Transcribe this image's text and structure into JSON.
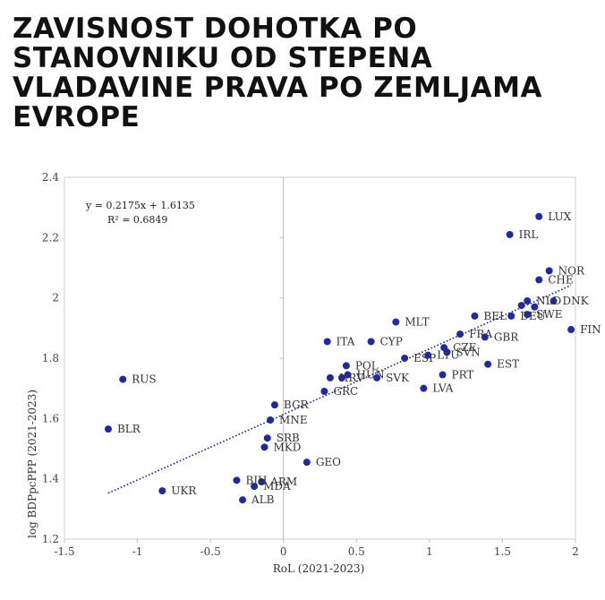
{
  "title": "ZAVISNOST DOHOTKA PO STANOVNIKU OD STEPENA VLADAVINE PRAVA PO ZEMLJAMA EVROPE",
  "chart_data": {
    "type": "scatter",
    "xlabel": "RoL (2021-2023)",
    "ylabel": "log BDPpcPPP (2021-2023)",
    "xlim": [
      -1.5,
      2
    ],
    "ylim": [
      1.2,
      2.4
    ],
    "xticks": [
      "-1.5",
      "-1",
      "-0.5",
      "0",
      "0.5",
      "1",
      "1.5",
      "2"
    ],
    "yticks": [
      "1.2",
      "1.4",
      "1.6",
      "1.8",
      "2",
      "2.2",
      "2.4"
    ],
    "trend": {
      "equation": "y = 0.2175x + 1.6135",
      "r2": "R² = 0.6849",
      "slope": 0.2175,
      "intercept": 1.6135,
      "x_range": [
        -1.2,
        1.97
      ]
    },
    "color": "#1f2a9e",
    "points": [
      {
        "label": "LUX",
        "x": 1.75,
        "y": 2.27
      },
      {
        "label": "IRL",
        "x": 1.55,
        "y": 2.21
      },
      {
        "label": "NOR",
        "x": 1.82,
        "y": 2.09
      },
      {
        "label": "CHE",
        "x": 1.75,
        "y": 2.06
      },
      {
        "label": "NLD",
        "x": 1.67,
        "y": 1.99
      },
      {
        "label": "",
        "x": 1.72,
        "y": 1.97
      },
      {
        "label": "DNK",
        "x": 1.85,
        "y": 1.99
      },
      {
        "label": "",
        "x": 1.63,
        "y": 1.975
      },
      {
        "label": "BEL",
        "x": 1.31,
        "y": 1.94
      },
      {
        "label": "DEU",
        "x": 1.56,
        "y": 1.94
      },
      {
        "label": "SWE",
        "x": 1.67,
        "y": 1.945
      },
      {
        "label": "FIN",
        "x": 1.97,
        "y": 1.895
      },
      {
        "label": "FRA",
        "x": 1.21,
        "y": 1.88
      },
      {
        "label": "GBR",
        "x": 1.38,
        "y": 1.87
      },
      {
        "label": "MLT",
        "x": 0.77,
        "y": 1.92
      },
      {
        "label": "ITA",
        "x": 0.3,
        "y": 1.855
      },
      {
        "label": "CYP",
        "x": 0.6,
        "y": 1.855
      },
      {
        "label": "CZE",
        "x": 1.1,
        "y": 1.835
      },
      {
        "label": "SVN",
        "x": 1.12,
        "y": 1.82
      },
      {
        "label": "LTU",
        "x": 0.99,
        "y": 1.81
      },
      {
        "label": "ESP",
        "x": 0.83,
        "y": 1.8
      },
      {
        "label": "EST",
        "x": 1.4,
        "y": 1.78
      },
      {
        "label": "PRT",
        "x": 1.09,
        "y": 1.745
      },
      {
        "label": "LVA",
        "x": 0.96,
        "y": 1.7
      },
      {
        "label": "POL",
        "x": 0.43,
        "y": 1.775
      },
      {
        "label": "HUN",
        "x": 0.44,
        "y": 1.745
      },
      {
        "label": "HRV",
        "x": 0.32,
        "y": 1.735
      },
      {
        "label": "SVK",
        "x": 0.64,
        "y": 1.735
      },
      {
        "label": "",
        "x": 0.4,
        "y": 1.735
      },
      {
        "label": "GRC",
        "x": 0.28,
        "y": 1.69
      },
      {
        "label": "RUS",
        "x": -1.1,
        "y": 1.73
      },
      {
        "label": "BGR",
        "x": -0.06,
        "y": 1.645
      },
      {
        "label": "MNE",
        "x": -0.09,
        "y": 1.595
      },
      {
        "label": "BLR",
        "x": -1.2,
        "y": 1.565
      },
      {
        "label": "SRB",
        "x": -0.11,
        "y": 1.535
      },
      {
        "label": "MKD",
        "x": -0.13,
        "y": 1.505
      },
      {
        "label": "GEO",
        "x": 0.16,
        "y": 1.455
      },
      {
        "label": "BIH",
        "x": -0.32,
        "y": 1.395
      },
      {
        "label": "ARM",
        "x": -0.15,
        "y": 1.39
      },
      {
        "label": "UKR",
        "x": -0.83,
        "y": 1.36
      },
      {
        "label": "MDA",
        "x": -0.2,
        "y": 1.375
      },
      {
        "label": "ALB",
        "x": -0.28,
        "y": 1.33
      }
    ]
  }
}
